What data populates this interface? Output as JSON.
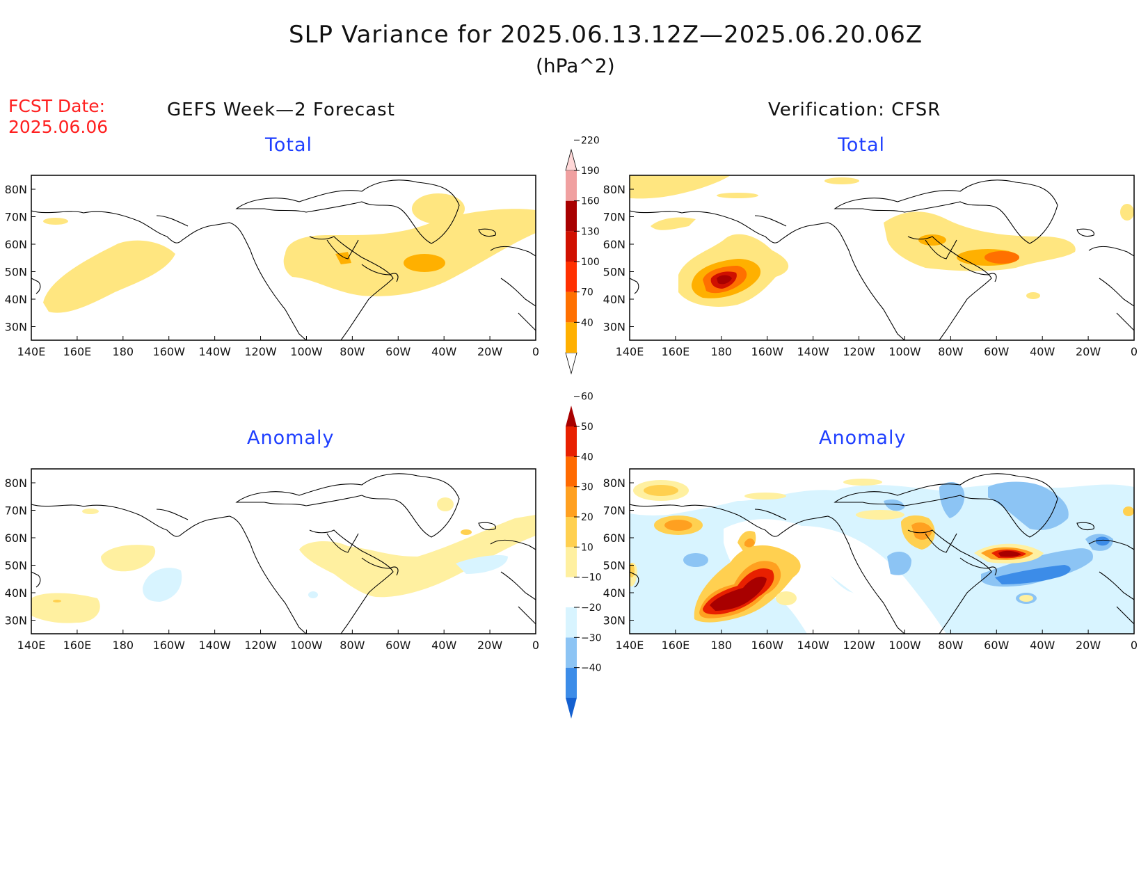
{
  "header": {
    "title": "SLP Variance for 2025.06.13.12Z—2025.06.20.06Z",
    "units": "(hPa^2)",
    "fcst_label": "FCST Date:",
    "fcst_date": "2025.06.06"
  },
  "columns": {
    "left": "GEFS Week—2 Forecast",
    "right": "Verification: CFSR"
  },
  "panels": [
    {
      "id": "forecast-total",
      "subtitle": "Total"
    },
    {
      "id": "verification-total",
      "subtitle": "Total"
    },
    {
      "id": "forecast-anomaly",
      "subtitle": "Anomaly"
    },
    {
      "id": "verification-anomaly",
      "subtitle": "Anomaly"
    }
  ],
  "axes": {
    "lon_ticks": [
      "140E",
      "160E",
      "180",
      "160W",
      "140W",
      "120W",
      "100W",
      "80W",
      "60W",
      "40W",
      "20W",
      "0"
    ],
    "lat_ticks": [
      "80N",
      "70N",
      "60N",
      "50N",
      "40N",
      "30N"
    ]
  },
  "colorbars": {
    "total": {
      "levels": [
        "40",
        "70",
        "100",
        "130",
        "160",
        "190",
        "220"
      ],
      "colors": [
        "#ffe680",
        "#ffb000",
        "#ff7000",
        "#ff3000",
        "#d01000",
        "#a80000",
        "#f0a0a0",
        "#ffd8d8"
      ]
    },
    "anomaly": {
      "levels": [
        "−40",
        "−30",
        "−20",
        "−10",
        "10",
        "20",
        "30",
        "40",
        "50",
        "60"
      ],
      "colors": [
        "#1460d0",
        "#3c8ce8",
        "#8cc4f4",
        "#d8f4ff",
        "#ffffff",
        "#fff0a0",
        "#ffd050",
        "#ffa020",
        "#ff6a00",
        "#e82000",
        "#a80000"
      ]
    }
  },
  "colors": {
    "title": "#111111",
    "fcst": "#ff2020",
    "subtitle": "#1f3fff",
    "map_line": "#000000"
  }
}
